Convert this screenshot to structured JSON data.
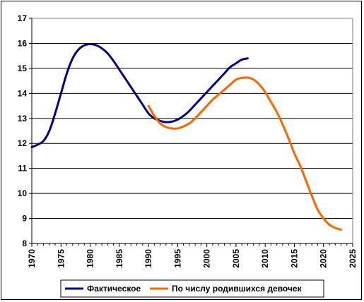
{
  "chart_data": {
    "type": "line",
    "title": "",
    "xlabel": "",
    "ylabel": "",
    "xlim": [
      1970,
      2025
    ],
    "ylim": [
      8,
      17
    ],
    "x_ticks": [
      1970,
      1975,
      1980,
      1985,
      1990,
      1995,
      2000,
      2005,
      2010,
      2015,
      2020,
      2025
    ],
    "y_ticks": [
      8,
      9,
      10,
      11,
      12,
      13,
      14,
      15,
      16,
      17
    ],
    "grid": "horizontal",
    "legend_position": "bottom",
    "series": [
      {
        "name": "Фактическое",
        "color": "#000080",
        "x": [
          1970,
          1971,
          1972,
          1973,
          1974,
          1975,
          1976,
          1977,
          1978,
          1979,
          1980,
          1981,
          1982,
          1983,
          1984,
          1985,
          1986,
          1987,
          1988,
          1989,
          1990,
          1991,
          1992,
          1993,
          1994,
          1995,
          1996,
          1997,
          1998,
          1999,
          2000,
          2001,
          2002,
          2003,
          2004,
          2005,
          2006,
          2007
        ],
        "values": [
          11.85,
          11.95,
          12.1,
          12.5,
          13.2,
          14.0,
          14.8,
          15.4,
          15.75,
          15.92,
          15.97,
          15.93,
          15.8,
          15.6,
          15.3,
          14.95,
          14.6,
          14.25,
          13.9,
          13.55,
          13.2,
          13.0,
          12.9,
          12.85,
          12.87,
          12.95,
          13.1,
          13.3,
          13.55,
          13.8,
          14.05,
          14.3,
          14.55,
          14.8,
          15.05,
          15.2,
          15.35,
          15.4
        ]
      },
      {
        "name": "По числу родившихся девочек",
        "color": "#FF6600",
        "x": [
          1990,
          1991,
          1992,
          1993,
          1994,
          1995,
          1996,
          1997,
          1998,
          1999,
          2000,
          2001,
          2002,
          2003,
          2004,
          2005,
          2006,
          2007,
          2008,
          2009,
          2010,
          2011,
          2012,
          2013,
          2014,
          2015,
          2016,
          2017,
          2018,
          2019,
          2020,
          2021,
          2022,
          2023
        ],
        "values": [
          13.5,
          13.1,
          12.8,
          12.65,
          12.6,
          12.6,
          12.68,
          12.8,
          13.0,
          13.25,
          13.5,
          13.75,
          13.95,
          14.15,
          14.35,
          14.55,
          14.62,
          14.63,
          14.55,
          14.35,
          14.05,
          13.65,
          13.25,
          12.75,
          12.2,
          11.6,
          11.1,
          10.5,
          9.9,
          9.35,
          9.0,
          8.75,
          8.62,
          8.55
        ]
      }
    ]
  }
}
